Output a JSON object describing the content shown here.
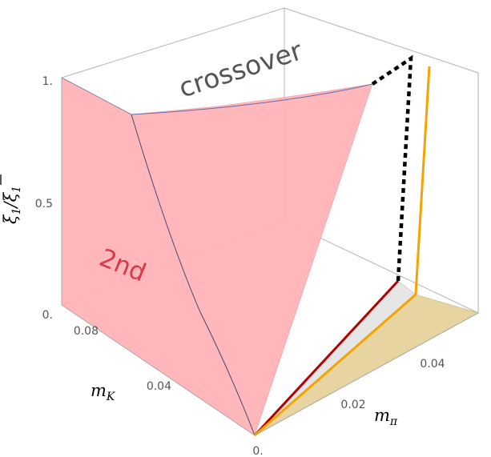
{
  "chart_data": {
    "type": "3d-surface",
    "axes": {
      "x": {
        "label_main": "m",
        "label_sub": "π",
        "ticks": [
          "0.02",
          "0.04"
        ]
      },
      "y": {
        "label_main": "m",
        "label_sub": "K",
        "ticks": [
          "0.04",
          "0.08"
        ]
      },
      "z": {
        "label_main": "ξ",
        "label_sub": "1",
        "label_sep": "/",
        "label_bar": "ξ",
        "label_bar_sub": "1",
        "ticks": [
          "0.",
          "0.5",
          "1."
        ]
      },
      "origin_label": "0."
    },
    "regions": [
      {
        "name": "crossover",
        "label": "crossover",
        "color": "#ffffff"
      },
      {
        "name": "2nd",
        "label": "2nd",
        "color": "#ffb3b8"
      }
    ],
    "lines": [
      {
        "name": "tricritical-line",
        "color": "#b00000"
      },
      {
        "name": "critical-line",
        "color": "#f5a300"
      },
      {
        "name": "dashed-boundary",
        "color": "#000000"
      }
    ],
    "colors": {
      "pink_surface": "#ffb3b8",
      "tan_floor": "#e8d4a0",
      "gray_floor": "#e6e6e6",
      "box_edge": "#a8a8a8"
    }
  }
}
